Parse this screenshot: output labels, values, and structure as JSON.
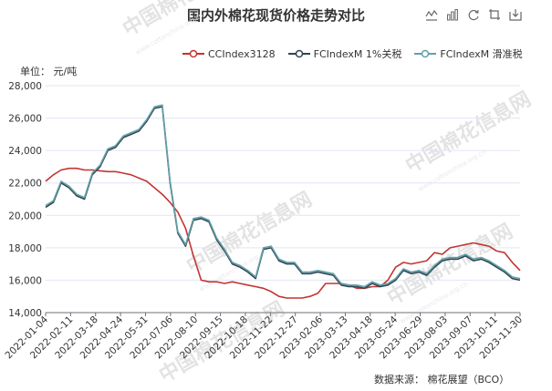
{
  "title": "国内外棉花现货价格走势对比",
  "unit_label": "单位： 元/吨",
  "source_label": "数据来源： 棉花展望（BCO）",
  "watermark": {
    "text": "中国棉花信息网",
    "url": "www.cottonchina.org.cn"
  },
  "toolbox": [
    {
      "name": "line-chart-icon"
    },
    {
      "name": "bar-chart-icon"
    },
    {
      "name": "refresh-icon"
    },
    {
      "name": "restore-icon"
    },
    {
      "name": "save-image-icon"
    }
  ],
  "chart_data": {
    "type": "line",
    "xlabel": "",
    "ylabel": "元/吨",
    "ylim": [
      14000,
      28000
    ],
    "yticks": [
      14000,
      16000,
      18000,
      20000,
      22000,
      24000,
      26000,
      28000
    ],
    "ytick_labels": [
      "14,000",
      "16,000",
      "18,000",
      "20,000",
      "22,000",
      "24,000",
      "26,000",
      "28,000"
    ],
    "xtick_labels": [
      "2022-01-04",
      "2022-02-11",
      "2022-03-18",
      "2022-04-24",
      "2022-05-31",
      "2022-07-06",
      "2022-08-10",
      "2022-09-15",
      "2022-10-18",
      "2022-11-22",
      "2022-12-27",
      "2023-02-06",
      "2023-03-13",
      "2023-04-18",
      "2023-05-24",
      "2023-06-29",
      "2023-08-03",
      "2023-09-07",
      "2023-10-11",
      "2023-11-30"
    ],
    "grid": "horizontal",
    "legend_position": "top",
    "series": [
      {
        "name": "CCIndex3128",
        "color": "#c23531",
        "values": [
          22100,
          22500,
          22800,
          22900,
          22900,
          22800,
          22800,
          22750,
          22700,
          22700,
          22600,
          22500,
          22300,
          22100,
          21700,
          21300,
          20800,
          20200,
          19200,
          17500,
          16000,
          15900,
          15900,
          15800,
          15900,
          15800,
          15700,
          15600,
          15500,
          15300,
          15000,
          14900,
          14900,
          14900,
          15000,
          15200,
          15800,
          15800,
          15800,
          15700,
          15500,
          15500,
          15600,
          15600,
          16000,
          16800,
          17100,
          17000,
          17100,
          17200,
          17700,
          17600,
          18000,
          18100,
          18200,
          18300,
          18200,
          18100,
          17800,
          17700,
          17100,
          16600
        ]
      },
      {
        "name": "FCIndexM 1%关税",
        "color": "#2f4554",
        "values": [
          20500,
          20800,
          22000,
          21700,
          21200,
          21000,
          22500,
          23000,
          24000,
          24200,
          24800,
          25000,
          25200,
          25800,
          26600,
          26700,
          22000,
          18900,
          18100,
          19700,
          19800,
          19600,
          18500,
          17800,
          17000,
          16800,
          16500,
          16100,
          17900,
          18000,
          17200,
          17000,
          17000,
          16400,
          16400,
          16500,
          16400,
          16300,
          15700,
          15600,
          15600,
          15500,
          15800,
          15600,
          15700,
          16000,
          16600,
          16400,
          16500,
          16300,
          16800,
          17200,
          17300,
          17300,
          17500,
          17200,
          17300,
          17100,
          16800,
          16500,
          16100,
          16000
        ]
      },
      {
        "name": "FCIndexM 滑准税",
        "color": "#61a0a8",
        "values": [
          20600,
          20900,
          22100,
          21800,
          21300,
          21100,
          22600,
          23100,
          24100,
          24300,
          24900,
          25100,
          25300,
          25900,
          26700,
          26800,
          22100,
          19000,
          18200,
          19800,
          19900,
          19700,
          18600,
          17900,
          17100,
          16900,
          16600,
          16200,
          18000,
          18100,
          17300,
          17100,
          17100,
          16500,
          16500,
          16600,
          16500,
          16400,
          15800,
          15700,
          15700,
          15600,
          15900,
          15700,
          15800,
          16100,
          16700,
          16500,
          16600,
          16400,
          16900,
          17300,
          17400,
          17400,
          17600,
          17300,
          17400,
          17200,
          16900,
          16600,
          16200,
          16100
        ]
      }
    ]
  }
}
